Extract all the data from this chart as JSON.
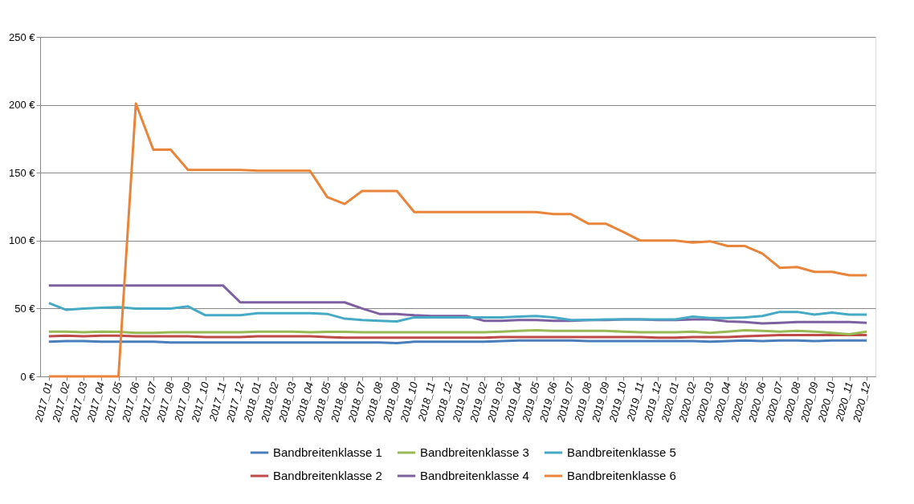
{
  "chart_data": {
    "type": "line",
    "categories": [
      "2017_01",
      "2017_02",
      "2017_03",
      "2017_04",
      "2017_05",
      "2017_06",
      "2017_07",
      "2017_08",
      "2017_09",
      "2017_10",
      "2017_11",
      "2017_12",
      "2018_01",
      "2018_02",
      "2018_03",
      "2018_04",
      "2018_05",
      "2018_06",
      "2018_07",
      "2018_08",
      "2018_09",
      "2018_10",
      "2018_11",
      "2018_12",
      "2019_01",
      "2019_02",
      "2019_03",
      "2019_04",
      "2019_05",
      "2019_06",
      "2019_07",
      "2019_08",
      "2019_09",
      "2019_10",
      "2019_11",
      "2019_12",
      "2020_01",
      "2020_02",
      "2020_03",
      "2020_04",
      "2020_05",
      "2020_06",
      "2020_07",
      "2020_08",
      "2020_09",
      "2020_10",
      "2020_11",
      "2020_12"
    ],
    "series": [
      {
        "name": "Bandbreitenklasse 1",
        "color": "#4a7ebb",
        "values": [
          25.5,
          26,
          26,
          25.5,
          25.5,
          25.5,
          25.5,
          25,
          25,
          25,
          25,
          25,
          25,
          25,
          25,
          25,
          25,
          25,
          25,
          25,
          24.5,
          25.5,
          25.5,
          25.5,
          25.5,
          25.5,
          26,
          26.5,
          26.5,
          26.5,
          26.5,
          26,
          26,
          26,
          26,
          26,
          26,
          26,
          25.5,
          26,
          26.5,
          26,
          26.5,
          26.5,
          26,
          26.5,
          26.5,
          26.5
        ]
      },
      {
        "name": "Bandbreitenklasse 2",
        "color": "#be4b48",
        "values": [
          29.5,
          30,
          29.5,
          30,
          30,
          29.5,
          29.5,
          29.5,
          29.5,
          29,
          29,
          29,
          29.5,
          29.5,
          29.5,
          29.5,
          29,
          28.5,
          28.5,
          28.5,
          28.5,
          28.5,
          28.5,
          28.5,
          28.5,
          28.5,
          29,
          29,
          29,
          29,
          29,
          29,
          29,
          29,
          29,
          28.5,
          28.5,
          29,
          29,
          29,
          29.5,
          30,
          30.5,
          30.5,
          30.5,
          30.5,
          30.5,
          30.5
        ]
      },
      {
        "name": "Bandbreitenklasse 3",
        "color": "#98b954",
        "values": [
          33,
          33,
          32.5,
          33,
          32.8,
          32,
          32,
          32.5,
          32.5,
          32.5,
          32.5,
          32.5,
          33,
          33,
          33,
          32.5,
          32.8,
          32.8,
          32.5,
          32.5,
          32.5,
          32.5,
          32.5,
          32.5,
          32.5,
          32.5,
          33,
          33.5,
          34,
          33.5,
          33.5,
          33.5,
          33.5,
          33,
          32.5,
          32.5,
          32.5,
          33,
          32,
          33,
          34,
          33.5,
          33,
          33.5,
          33,
          32,
          31,
          33
        ]
      },
      {
        "name": "Bandbreitenklasse 4",
        "color": "#7d60a0",
        "values": [
          67,
          67,
          67,
          67,
          67,
          67,
          67,
          67,
          67,
          67,
          67,
          54.5,
          54.5,
          54.5,
          54.5,
          54.5,
          54.5,
          54.5,
          50,
          46,
          46,
          45,
          44.5,
          44.5,
          44.5,
          41,
          41,
          41.5,
          41.5,
          41,
          41,
          41.5,
          41.5,
          42,
          42,
          41.5,
          41.5,
          42,
          42,
          40.5,
          40,
          39,
          39.5,
          40,
          40,
          40,
          40,
          39.5
        ]
      },
      {
        "name": "Bandbreitenklasse 5",
        "color": "#46aac5",
        "values": [
          54,
          49,
          50,
          50.5,
          51,
          50,
          50,
          50,
          51.5,
          45,
          45,
          45,
          46.5,
          46.5,
          46.5,
          46.5,
          46,
          42.5,
          41.5,
          41,
          40.5,
          43.5,
          43.5,
          43.5,
          43.5,
          43.5,
          43.5,
          44,
          44.5,
          43.5,
          41.5,
          41.5,
          42,
          42,
          42,
          42,
          42,
          44,
          43,
          43,
          43.5,
          44.5,
          47.5,
          47.5,
          45.5,
          47,
          45.5,
          45.5
        ]
      },
      {
        "name": "Bandbreitenklasse 6",
        "color": "#e8853a",
        "values": [
          0,
          0,
          0,
          0,
          0,
          201,
          167,
          167,
          152,
          152,
          152,
          152,
          151.5,
          151.5,
          151.5,
          151.5,
          132,
          127,
          136.5,
          136.5,
          136.5,
          121,
          121,
          121,
          121,
          121,
          121,
          121,
          121,
          119.5,
          119.5,
          112.5,
          112.5,
          106.5,
          100,
          100,
          100,
          98.5,
          99.5,
          96,
          96,
          90.5,
          80,
          80.5,
          77,
          77,
          74.5,
          74.5
        ]
      }
    ],
    "ylim": [
      0,
      250
    ],
    "yticks": [
      {
        "value": 0,
        "label": "0 €"
      },
      {
        "value": 50,
        "label": "50 €"
      },
      {
        "value": 100,
        "label": "100 €"
      },
      {
        "value": 150,
        "label": "150 €"
      },
      {
        "value": 200,
        "label": "200 €"
      },
      {
        "value": 250,
        "label": "250 €"
      }
    ],
    "grid": "y",
    "legend": "bottom",
    "marker": "none",
    "line_style": "solid"
  }
}
